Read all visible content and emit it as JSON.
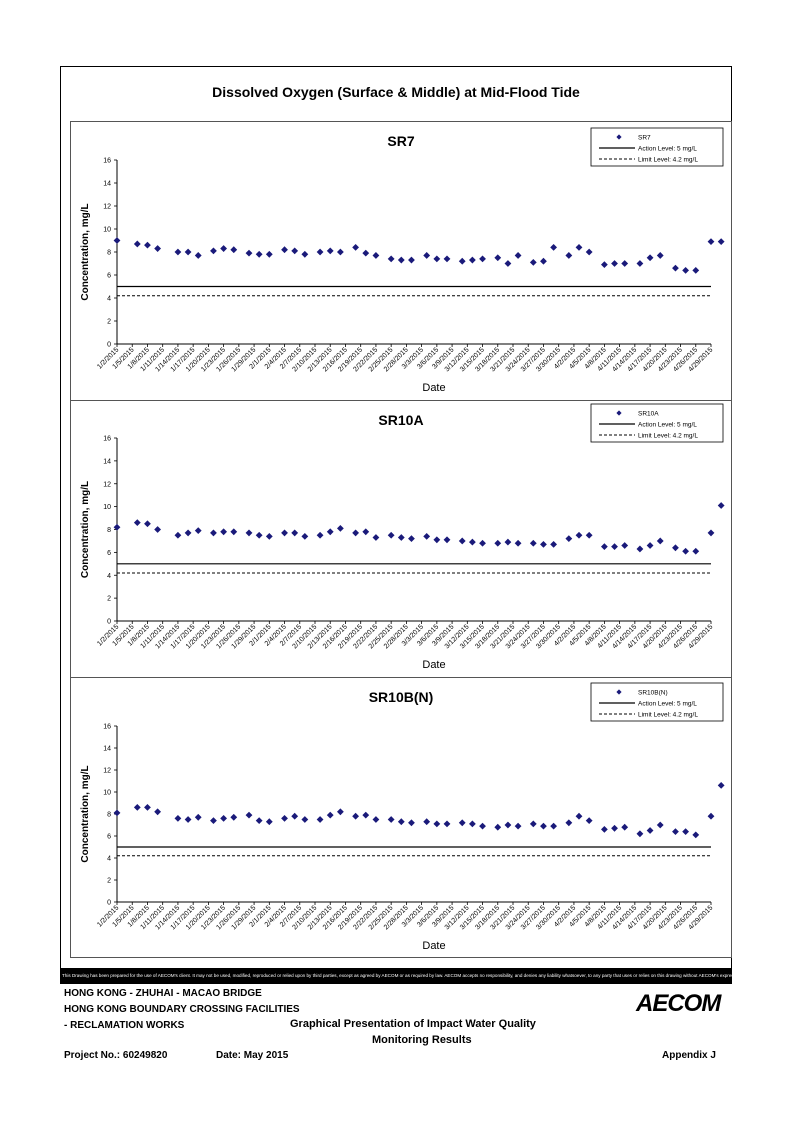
{
  "page_title": "Dissolved Oxygen (Surface & Middle) at Mid-Flood Tide",
  "disclaimer": "This Drawing has been prepared for the use of AECOM's client. It may not be used, modified, reproduced or relied upon by third parties, except as agreed by AECOM or as required by law. AECOM accepts no responsibility, and denies any liability whatsoever, to any party that uses or relies on this drawing without AECOM's express written consent.",
  "footer": {
    "project_line1": "HONG KONG - ZHUHAI - MACAO BRIDGE",
    "project_line2": "HONG KONG BOUNDARY CROSSING FACILITIES",
    "project_line3": "- RECLAMATION WORKS",
    "drawing_title_line1": "Graphical Presentation of Impact Water Quality",
    "drawing_title_line2": "Monitoring Results",
    "project_no": "Project No.: 60249820",
    "date": "Date: May 2015",
    "appendix": "Appendix J",
    "logo_text": "AECOM"
  },
  "colors": {
    "marker": "#1a1a7a",
    "line": "#000000"
  },
  "chart_data": [
    {
      "type": "scatter",
      "title": "SR7",
      "xlabel": "Date",
      "ylabel": "Concentration, mg/L",
      "ylim": [
        0,
        16
      ],
      "yticks": [
        0,
        2,
        4,
        6,
        8,
        10,
        12,
        14,
        16
      ],
      "xlim": [
        "1/2/2015",
        "4/29/2015"
      ],
      "xticks": [
        "1/2/2015",
        "1/5/2015",
        "1/8/2015",
        "1/11/2015",
        "1/14/2015",
        "1/17/2015",
        "1/20/2015",
        "1/23/2015",
        "1/26/2015",
        "1/29/2015",
        "2/1/2015",
        "2/4/2015",
        "2/7/2015",
        "2/10/2015",
        "2/13/2015",
        "2/16/2015",
        "2/19/2015",
        "2/22/2015",
        "2/25/2015",
        "2/28/2015",
        "3/3/2015",
        "3/6/2015",
        "3/9/2015",
        "3/12/2015",
        "3/15/2015",
        "3/18/2015",
        "3/21/2015",
        "3/24/2015",
        "3/27/2015",
        "3/30/2015",
        "4/2/2015",
        "4/5/2015",
        "4/8/2015",
        "4/11/2015",
        "4/14/2015",
        "4/17/2015",
        "4/20/2015",
        "4/23/2015",
        "4/26/2015",
        "4/29/2015"
      ],
      "legend_position": "top-right",
      "legend": [
        "SR7",
        "Action Level: 5 mg/L",
        "Limit Level: 4.2 mg/L"
      ],
      "action_level": 5,
      "limit_level": 4.2,
      "series": [
        {
          "name": "SR7",
          "x": [
            "1/2/2015",
            "1/6/2015",
            "1/8/2015",
            "1/10/2015",
            "1/14/2015",
            "1/16/2015",
            "1/18/2015",
            "1/21/2015",
            "1/23/2015",
            "1/25/2015",
            "1/28/2015",
            "1/30/2015",
            "2/1/2015",
            "2/4/2015",
            "2/6/2015",
            "2/8/2015",
            "2/11/2015",
            "2/13/2015",
            "2/15/2015",
            "2/18/2015",
            "2/20/2015",
            "2/22/2015",
            "2/25/2015",
            "2/27/2015",
            "3/1/2015",
            "3/4/2015",
            "3/6/2015",
            "3/8/2015",
            "3/11/2015",
            "3/13/2015",
            "3/15/2015",
            "3/18/2015",
            "3/20/2015",
            "3/22/2015",
            "3/25/2015",
            "3/27/2015",
            "3/29/2015",
            "4/1/2015",
            "4/3/2015",
            "4/5/2015",
            "4/8/2015",
            "4/10/2015",
            "4/12/2015",
            "4/15/2015",
            "4/17/2015",
            "4/19/2015",
            "4/22/2015",
            "4/24/2015",
            "4/26/2015",
            "4/29/2015",
            "4/31/2015"
          ],
          "y": [
            9.0,
            8.7,
            8.6,
            8.3,
            8.0,
            8.0,
            7.7,
            8.1,
            8.3,
            8.2,
            7.9,
            7.8,
            7.8,
            8.2,
            8.1,
            7.8,
            8.0,
            8.1,
            8.0,
            8.4,
            7.9,
            7.7,
            7.4,
            7.3,
            7.3,
            7.7,
            7.4,
            7.4,
            7.2,
            7.3,
            7.4,
            7.5,
            7.0,
            7.7,
            7.1,
            7.2,
            8.4,
            7.7,
            8.4,
            8.0,
            6.9,
            7.0,
            7.0,
            7.0,
            7.5,
            7.7,
            6.6,
            6.4,
            6.4,
            8.9,
            8.9
          ]
        }
      ]
    },
    {
      "type": "scatter",
      "title": "SR10A",
      "xlabel": "Date",
      "ylabel": "Concentration, mg/L",
      "ylim": [
        0,
        16
      ],
      "yticks": [
        0,
        2,
        4,
        6,
        8,
        10,
        12,
        14,
        16
      ],
      "xlim": [
        "1/2/2015",
        "4/29/2015"
      ],
      "xticks": [
        "1/2/2015",
        "1/5/2015",
        "1/8/2015",
        "1/11/2015",
        "1/14/2015",
        "1/17/2015",
        "1/20/2015",
        "1/23/2015",
        "1/26/2015",
        "1/29/2015",
        "2/1/2015",
        "2/4/2015",
        "2/7/2015",
        "2/10/2015",
        "2/13/2015",
        "2/16/2015",
        "2/19/2015",
        "2/22/2015",
        "2/25/2015",
        "2/28/2015",
        "3/3/2015",
        "3/6/2015",
        "3/9/2015",
        "3/12/2015",
        "3/15/2015",
        "3/18/2015",
        "3/21/2015",
        "3/24/2015",
        "3/27/2015",
        "3/30/2015",
        "4/2/2015",
        "4/5/2015",
        "4/8/2015",
        "4/11/2015",
        "4/14/2015",
        "4/17/2015",
        "4/20/2015",
        "4/23/2015",
        "4/26/2015",
        "4/29/2015"
      ],
      "legend_position": "top-right",
      "legend": [
        "SR10A",
        "Action Level: 5 mg/L",
        "Limit Level: 4.2 mg/L"
      ],
      "action_level": 5,
      "limit_level": 4.2,
      "series": [
        {
          "name": "SR10A",
          "x": [
            "1/2/2015",
            "1/6/2015",
            "1/8/2015",
            "1/10/2015",
            "1/14/2015",
            "1/16/2015",
            "1/18/2015",
            "1/21/2015",
            "1/23/2015",
            "1/25/2015",
            "1/28/2015",
            "1/30/2015",
            "2/1/2015",
            "2/4/2015",
            "2/6/2015",
            "2/8/2015",
            "2/11/2015",
            "2/13/2015",
            "2/15/2015",
            "2/18/2015",
            "2/20/2015",
            "2/22/2015",
            "2/25/2015",
            "2/27/2015",
            "3/1/2015",
            "3/4/2015",
            "3/6/2015",
            "3/8/2015",
            "3/11/2015",
            "3/13/2015",
            "3/15/2015",
            "3/18/2015",
            "3/20/2015",
            "3/22/2015",
            "3/25/2015",
            "3/27/2015",
            "3/29/2015",
            "4/1/2015",
            "4/3/2015",
            "4/5/2015",
            "4/8/2015",
            "4/10/2015",
            "4/12/2015",
            "4/15/2015",
            "4/17/2015",
            "4/19/2015",
            "4/22/2015",
            "4/24/2015",
            "4/26/2015",
            "4/29/2015",
            "4/31/2015"
          ],
          "y": [
            8.2,
            8.6,
            8.5,
            8.0,
            7.5,
            7.7,
            7.9,
            7.7,
            7.8,
            7.8,
            7.7,
            7.5,
            7.4,
            7.7,
            7.7,
            7.4,
            7.5,
            7.8,
            8.1,
            7.7,
            7.8,
            7.3,
            7.5,
            7.3,
            7.2,
            7.4,
            7.1,
            7.1,
            7.0,
            6.9,
            6.8,
            6.8,
            6.9,
            6.8,
            6.8,
            6.7,
            6.7,
            7.2,
            7.5,
            7.5,
            6.5,
            6.5,
            6.6,
            6.3,
            6.6,
            7.0,
            6.4,
            6.1,
            6.1,
            7.7,
            10.1
          ]
        }
      ]
    },
    {
      "type": "scatter",
      "title": "SR10B(N)",
      "xlabel": "Date",
      "ylabel": "Concentration, mg/L",
      "ylim": [
        0,
        16
      ],
      "yticks": [
        0,
        2,
        4,
        6,
        8,
        10,
        12,
        14,
        16
      ],
      "xlim": [
        "1/2/2015",
        "4/29/2015"
      ],
      "xticks": [
        "1/2/2015",
        "1/5/2015",
        "1/8/2015",
        "1/11/2015",
        "1/14/2015",
        "1/17/2015",
        "1/20/2015",
        "1/23/2015",
        "1/26/2015",
        "1/29/2015",
        "2/1/2015",
        "2/4/2015",
        "2/7/2015",
        "2/10/2015",
        "2/13/2015",
        "2/16/2015",
        "2/19/2015",
        "2/22/2015",
        "2/25/2015",
        "2/28/2015",
        "3/3/2015",
        "3/6/2015",
        "3/9/2015",
        "3/12/2015",
        "3/15/2015",
        "3/18/2015",
        "3/21/2015",
        "3/24/2015",
        "3/27/2015",
        "3/30/2015",
        "4/2/2015",
        "4/5/2015",
        "4/8/2015",
        "4/11/2015",
        "4/14/2015",
        "4/17/2015",
        "4/20/2015",
        "4/23/2015",
        "4/26/2015",
        "4/29/2015"
      ],
      "legend_position": "top-right",
      "legend": [
        "SR10B(N)",
        "Action Level: 5 mg/L",
        "Limit Level: 4.2 mg/L"
      ],
      "action_level": 5,
      "limit_level": 4.2,
      "series": [
        {
          "name": "SR10B(N)",
          "x": [
            "1/2/2015",
            "1/6/2015",
            "1/8/2015",
            "1/10/2015",
            "1/14/2015",
            "1/16/2015",
            "1/18/2015",
            "1/21/2015",
            "1/23/2015",
            "1/25/2015",
            "1/28/2015",
            "1/30/2015",
            "2/1/2015",
            "2/4/2015",
            "2/6/2015",
            "2/8/2015",
            "2/11/2015",
            "2/13/2015",
            "2/15/2015",
            "2/18/2015",
            "2/20/2015",
            "2/22/2015",
            "2/25/2015",
            "2/27/2015",
            "3/1/2015",
            "3/4/2015",
            "3/6/2015",
            "3/8/2015",
            "3/11/2015",
            "3/13/2015",
            "3/15/2015",
            "3/18/2015",
            "3/20/2015",
            "3/22/2015",
            "3/25/2015",
            "3/27/2015",
            "3/29/2015",
            "4/1/2015",
            "4/3/2015",
            "4/5/2015",
            "4/8/2015",
            "4/10/2015",
            "4/12/2015",
            "4/15/2015",
            "4/17/2015",
            "4/19/2015",
            "4/22/2015",
            "4/24/2015",
            "4/26/2015",
            "4/29/2015",
            "4/31/2015"
          ],
          "y": [
            8.1,
            8.6,
            8.6,
            8.2,
            7.6,
            7.5,
            7.7,
            7.4,
            7.6,
            7.7,
            7.9,
            7.4,
            7.3,
            7.6,
            7.8,
            7.5,
            7.5,
            7.9,
            8.2,
            7.8,
            7.9,
            7.5,
            7.5,
            7.3,
            7.2,
            7.3,
            7.1,
            7.1,
            7.2,
            7.1,
            6.9,
            6.8,
            7.0,
            6.9,
            7.1,
            6.9,
            6.9,
            7.2,
            7.8,
            7.4,
            6.6,
            6.7,
            6.8,
            6.2,
            6.5,
            7.0,
            6.4,
            6.4,
            6.1,
            7.8,
            10.6
          ]
        }
      ]
    }
  ]
}
